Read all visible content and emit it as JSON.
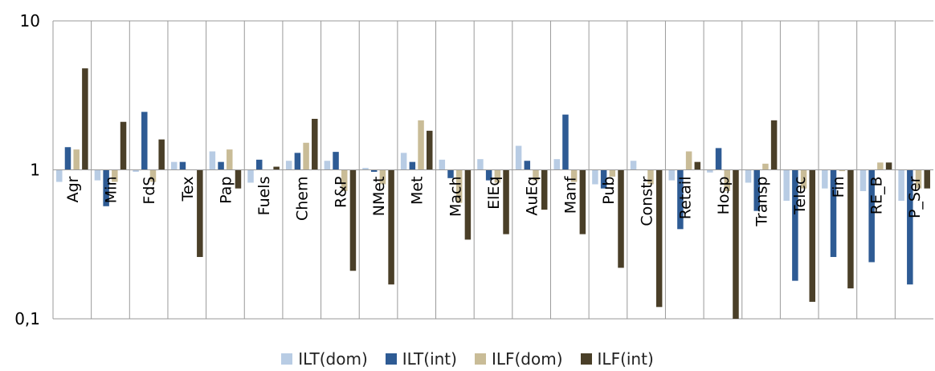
{
  "chart_data": {
    "type": "bar",
    "title": "",
    "xlabel": "",
    "ylabel": "",
    "yscale": "log",
    "baseline": 1,
    "ylim": [
      0.1,
      10
    ],
    "yticks": [
      {
        "value": 10,
        "label": "10"
      },
      {
        "value": 1,
        "label": "1"
      },
      {
        "value": 0.1,
        "label": "0,1"
      }
    ],
    "grid": "vertical separators between categories",
    "legend_position": "bottom",
    "categories": [
      "Agr",
      "Min",
      "FdS",
      "Tex",
      "Pap",
      "Fuels",
      "Chem",
      "R&P",
      "NMet",
      "Met",
      "Mach",
      "ElEq",
      "AuEq",
      "Manf",
      "Pub",
      "Constr",
      "Retail",
      "Hosp",
      "Transp",
      "Telec",
      "Fin",
      "RE_B",
      "P_Ser"
    ],
    "series": [
      {
        "name": "ILT(dom)",
        "color": "#b8cce4",
        "values": [
          0.83,
          0.85,
          0.97,
          1.13,
          1.33,
          0.82,
          1.15,
          1.15,
          1.03,
          1.3,
          1.17,
          1.18,
          1.45,
          1.18,
          0.8,
          1.15,
          0.85,
          0.96,
          0.82,
          0.62,
          0.75,
          0.72,
          0.62
        ]
      },
      {
        "name": "ILT(int)",
        "color": "#2e5b94",
        "values": [
          1.42,
          0.57,
          2.45,
          1.13,
          1.13,
          1.17,
          1.3,
          1.32,
          0.97,
          1.13,
          0.88,
          0.85,
          1.15,
          2.35,
          0.75,
          1.0,
          0.4,
          1.4,
          0.53,
          0.18,
          0.26,
          0.24,
          0.17
        ]
      },
      {
        "name": "ILF(dom)",
        "color": "#c9bc97",
        "values": [
          1.37,
          0.83,
          0.83,
          1.0,
          1.37,
          1.0,
          1.52,
          0.72,
          0.8,
          2.15,
          0.6,
          0.82,
          0.85,
          0.83,
          0.9,
          0.8,
          1.33,
          0.72,
          1.1,
          0.75,
          0.98,
          1.12,
          0.75
        ]
      },
      {
        "name": "ILF(int)",
        "color": "#4a3f28",
        "values": [
          4.8,
          2.1,
          1.6,
          0.26,
          0.75,
          1.05,
          2.2,
          0.21,
          0.17,
          1.83,
          0.34,
          0.37,
          0.54,
          0.37,
          0.22,
          0.12,
          1.13,
          0.1,
          2.15,
          0.13,
          0.16,
          1.12,
          0.75
        ]
      }
    ]
  }
}
